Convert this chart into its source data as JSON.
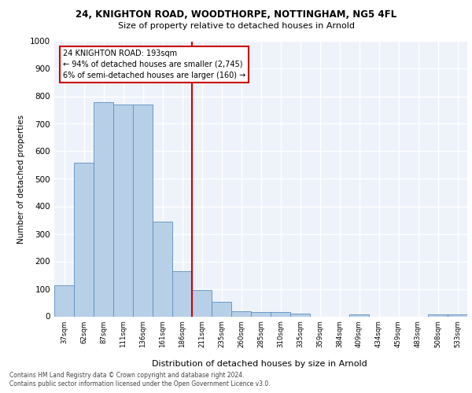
{
  "title1": "24, KNIGHTON ROAD, WOODTHORPE, NOTTINGHAM, NG5 4FL",
  "title2": "Size of property relative to detached houses in Arnold",
  "xlabel": "Distribution of detached houses by size in Arnold",
  "ylabel": "Number of detached properties",
  "bar_labels": [
    "37sqm",
    "62sqm",
    "87sqm",
    "111sqm",
    "136sqm",
    "161sqm",
    "186sqm",
    "211sqm",
    "235sqm",
    "260sqm",
    "285sqm",
    "310sqm",
    "335sqm",
    "359sqm",
    "384sqm",
    "409sqm",
    "434sqm",
    "459sqm",
    "483sqm",
    "508sqm",
    "533sqm"
  ],
  "bar_values": [
    113,
    558,
    778,
    770,
    770,
    343,
    165,
    97,
    53,
    20,
    15,
    15,
    9,
    0,
    0,
    8,
    0,
    0,
    0,
    8,
    8
  ],
  "bar_color": "#b8cfe8",
  "bar_edge_color": "#5a8fc0",
  "vline_x_index": 7.0,
  "vline_color": "#cc0000",
  "annotation_line1": "24 KNIGHTON ROAD: 193sqm",
  "annotation_line2": "← 94% of detached houses are smaller (2,745)",
  "annotation_line3": "6% of semi-detached houses are larger (160) →",
  "ylim": [
    0,
    1000
  ],
  "yticks": [
    0,
    100,
    200,
    300,
    400,
    500,
    600,
    700,
    800,
    900,
    1000
  ],
  "footer1": "Contains HM Land Registry data © Crown copyright and database right 2024.",
  "footer2": "Contains public sector information licensed under the Open Government Licence v3.0.",
  "bg_color": "#eef2fb",
  "grid_color": "#ffffff"
}
